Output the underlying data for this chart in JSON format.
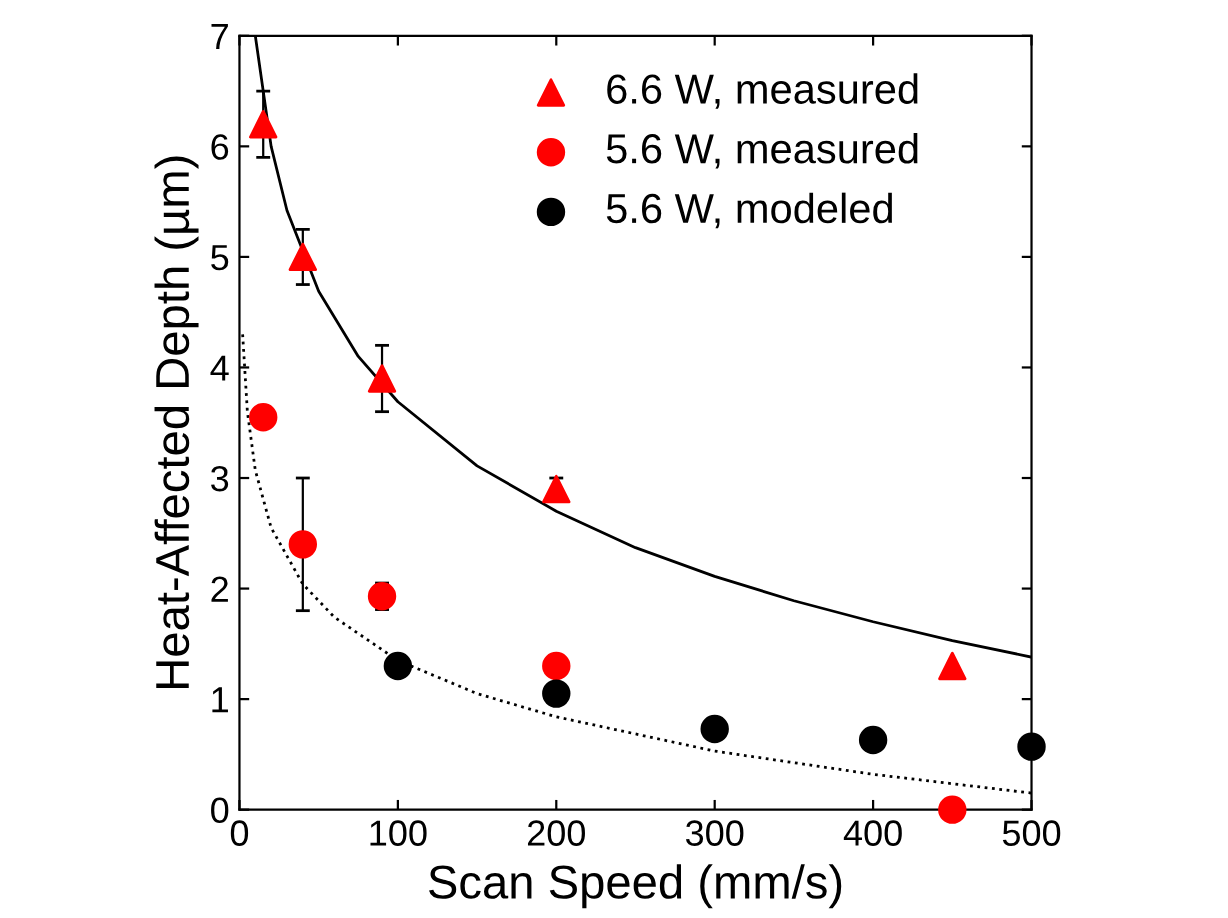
{
  "chart_data": {
    "type": "scatter",
    "xlabel": "Scan Speed (mm/s)",
    "ylabel": "Heat-Affected Depth (µm)",
    "xlim": [
      0,
      500
    ],
    "ylim": [
      0,
      7
    ],
    "xticks": [
      0,
      100,
      200,
      300,
      400,
      500
    ],
    "yticks": [
      0,
      1,
      2,
      3,
      4,
      5,
      6,
      7
    ],
    "grid": false,
    "legend": "top",
    "series": [
      {
        "type": "line",
        "color": "#000000",
        "line_style": "solid",
        "marker": "none",
        "x": [
          10,
          20,
          30,
          50,
          75,
          100,
          150,
          200,
          250,
          300,
          350,
          400,
          450,
          500
        ],
        "values": [
          7.0,
          6.0,
          5.42,
          4.69,
          4.1,
          3.69,
          3.11,
          2.7,
          2.37,
          2.11,
          1.89,
          1.7,
          1.53,
          1.38
        ]
      },
      {
        "type": "line",
        "color": "#000000",
        "line_style": "dotted",
        "marker": "none",
        "x": [
          2,
          5,
          10,
          20,
          40,
          60,
          100,
          150,
          200,
          300,
          400,
          500
        ],
        "values": [
          4.3,
          3.6,
          3.07,
          2.55,
          2.04,
          1.74,
          1.35,
          1.05,
          0.84,
          0.53,
          0.32,
          0.15
        ]
      },
      {
        "name": "6.6 W, measured",
        "color": "#ff0000",
        "marker": "triangle",
        "x": [
          15,
          40,
          90,
          200,
          450
        ],
        "values": [
          6.2,
          5.0,
          3.9,
          2.9,
          1.3
        ],
        "errors": [
          0.3,
          0.25,
          0.3,
          0.1,
          null
        ]
      },
      {
        "name": "5.6 W, measured",
        "color": "#ff0000",
        "marker": "circle",
        "x": [
          15,
          40,
          90,
          200,
          450
        ],
        "values": [
          3.55,
          2.4,
          1.93,
          1.3,
          0.0
        ],
        "errors": [
          null,
          0.6,
          0.12,
          null,
          null
        ]
      },
      {
        "name": "5.6 W, modeled",
        "color": "#000000",
        "marker": "circle",
        "x": [
          100,
          200,
          300,
          400,
          500
        ],
        "values": [
          1.3,
          1.05,
          0.73,
          0.63,
          0.57
        ]
      }
    ]
  }
}
